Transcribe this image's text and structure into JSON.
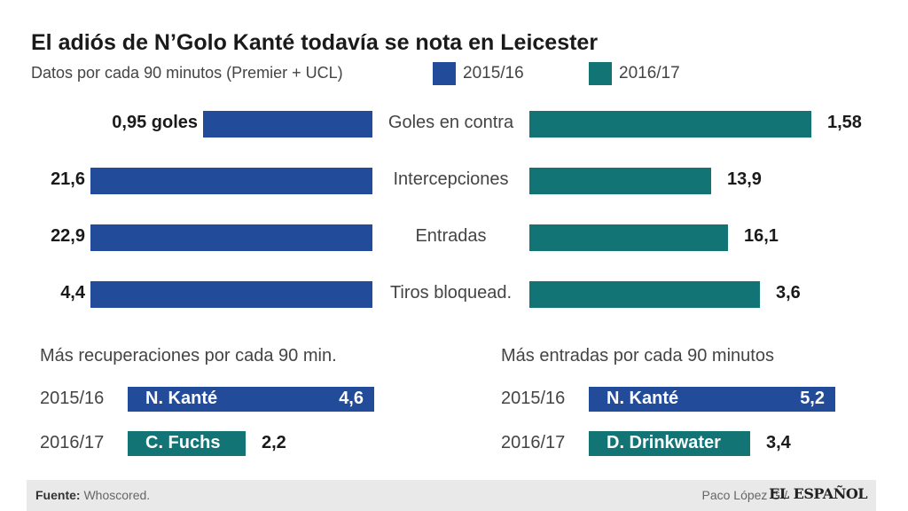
{
  "chart_data": [
    {
      "type": "bar",
      "orientation": "horizontal-diverging",
      "title": "El adiós de N’Golo Kanté todavía se nota en Leicester",
      "subtitle": "Datos por cada 90 minutos (Premier + UCL)",
      "categories": [
        "Goles en contra",
        "Intercepciones",
        "Entradas",
        "Tiros bloquead."
      ],
      "series": [
        {
          "name": "2015/16",
          "color": "#224b9a",
          "values": [
            0.95,
            21.6,
            22.9,
            4.4
          ],
          "labels": [
            "0,95 goles",
            "21,6",
            "22,9",
            "4,4"
          ]
        },
        {
          "name": "2016/17",
          "color": "#137476",
          "values": [
            1.58,
            13.9,
            16.1,
            3.6
          ],
          "labels": [
            "1,58",
            "13,9",
            "16,1",
            "3,6"
          ]
        }
      ],
      "legend": "top"
    },
    {
      "type": "bar",
      "orientation": "horizontal",
      "title": "Más recuperaciones por cada 90 min.",
      "categories": [
        "2015/16",
        "2016/17"
      ],
      "players": [
        "N. Kanté",
        "C. Fuchs"
      ],
      "values": [
        4.6,
        2.2
      ],
      "labels": [
        "4,6",
        "2,2"
      ],
      "colors": [
        "#224b9a",
        "#137476"
      ]
    },
    {
      "type": "bar",
      "orientation": "horizontal",
      "title": "Más entradas por cada 90 minutos",
      "categories": [
        "2015/16",
        "2016/17"
      ],
      "players": [
        "N. Kanté",
        "D. Drinkwater"
      ],
      "values": [
        5.2,
        3.4
      ],
      "labels": [
        "5,2",
        "3,4"
      ],
      "colors": [
        "#224b9a",
        "#137476"
      ]
    }
  ],
  "footer": {
    "source_label": "Fuente:",
    "source_value": "Whoscored.",
    "author": "Paco López G /",
    "logo": "EL ESPAÑOL"
  }
}
